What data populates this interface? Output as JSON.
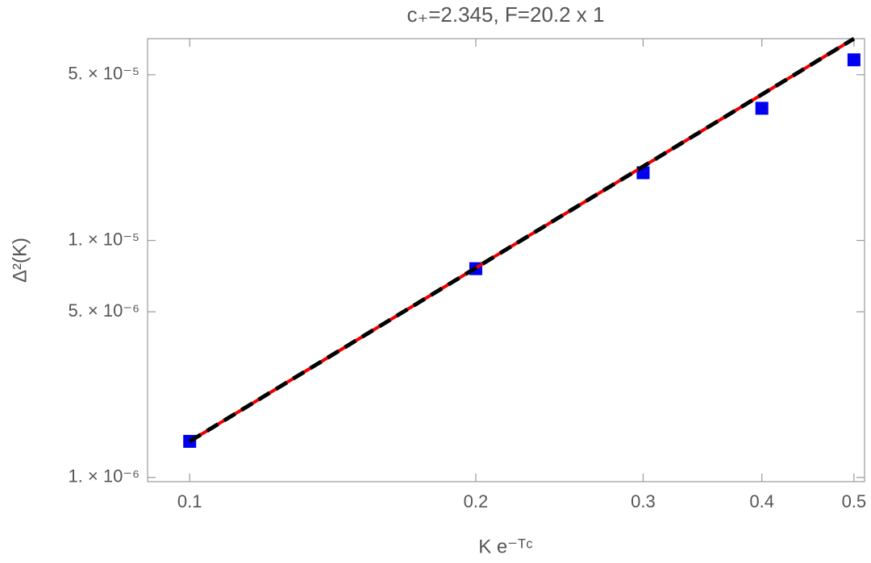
{
  "chart_data": {
    "type": "scatter",
    "title": "c₊=2.345, F=20.2 x 1",
    "xlabel": "K e⁻ᵀᶜ",
    "ylabel": "Δ²(K)",
    "xscale": "log",
    "yscale": "log",
    "xlim": [
      0.0903,
      0.513
    ],
    "ylim": [
      9.6e-07,
      7.1e-05
    ],
    "xticks": [
      0.1,
      0.2,
      0.3,
      0.4,
      0.5
    ],
    "yticks": [
      {
        "value": 1e-06,
        "label": "1. × 10⁻⁶"
      },
      {
        "value": 5e-06,
        "label": "5. × 10⁻⁶"
      },
      {
        "value": 1e-05,
        "label": "1. × 10⁻⁵"
      },
      {
        "value": 5e-05,
        "label": "5. × 10⁻⁵"
      }
    ],
    "series": [
      {
        "kind": "points",
        "color": "#0000ee",
        "x": [
          0.1,
          0.2,
          0.3,
          0.4,
          0.5
        ],
        "values": [
          1.42e-06,
          7.6e-06,
          1.93e-05,
          3.61e-05,
          5.78e-05
        ]
      },
      {
        "kind": "line",
        "color": "#ee0000",
        "x": [
          0.1,
          0.5
        ],
        "values": [
          1.42e-06,
          7.1e-05
        ]
      },
      {
        "kind": "line",
        "color": "#000000",
        "dash": true,
        "x": [
          0.1,
          0.5
        ],
        "values": [
          1.42e-06,
          7.1e-05
        ]
      }
    ]
  }
}
